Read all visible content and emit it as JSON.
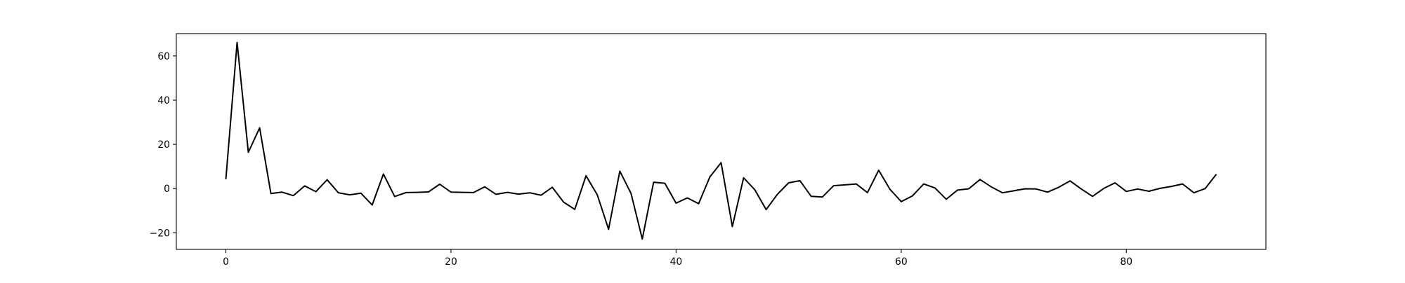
{
  "chart_data": {
    "type": "line",
    "title": "",
    "xlabel": "",
    "ylabel": "",
    "xlim": [
      -4.4,
      92.4
    ],
    "ylim": [
      -27.5,
      70.1
    ],
    "xticks": [
      0,
      20,
      40,
      60,
      80
    ],
    "yticks": [
      -20,
      0,
      20,
      40,
      60
    ],
    "grid": false,
    "legend": "none",
    "series": [
      {
        "color": "#000000",
        "x": [
          0,
          1,
          2,
          3,
          4,
          5,
          6,
          7,
          8,
          9,
          10,
          11,
          12,
          13,
          14,
          15,
          16,
          17,
          18,
          19,
          20,
          21,
          22,
          23,
          24,
          25,
          26,
          27,
          28,
          29,
          30,
          31,
          32,
          33,
          34,
          35,
          36,
          37,
          38,
          39,
          40,
          41,
          42,
          43,
          44,
          45,
          46,
          47,
          48,
          49,
          50,
          51,
          52,
          53,
          54,
          55,
          56,
          57,
          58,
          59,
          60,
          61,
          62,
          63,
          64,
          65,
          66,
          67,
          68,
          69,
          70,
          71,
          72,
          73,
          74,
          75,
          76,
          77,
          78,
          79,
          80,
          81,
          82,
          83,
          84,
          85,
          86,
          87,
          88
        ],
        "y": [
          4.2,
          66.1,
          16.4,
          27.5,
          -2.2,
          -1.6,
          -3.2,
          1.2,
          -1.4,
          4.0,
          -1.9,
          -2.8,
          -2.1,
          -7.4,
          6.6,
          -3.6,
          -1.8,
          -1.7,
          -1.5,
          2.0,
          -1.6,
          -1.7,
          -1.8,
          0.8,
          -2.6,
          -1.7,
          -2.5,
          -1.9,
          -3.0,
          0.6,
          -6.1,
          -9.4,
          5.8,
          -2.8,
          -18.4,
          7.9,
          -2.2,
          -22.8,
          2.9,
          2.4,
          -6.6,
          -4.2,
          -6.8,
          5.3,
          11.7,
          -17.2,
          4.9,
          -0.6,
          -9.5,
          -2.6,
          2.6,
          3.6,
          -3.5,
          -3.8,
          1.3,
          1.7,
          2.1,
          -1.8,
          8.3,
          -0.3,
          -5.9,
          -3.3,
          2.1,
          0.3,
          -4.8,
          -0.7,
          -0.1,
          4.1,
          0.8,
          -1.9,
          -1.0,
          -0.1,
          -0.2,
          -1.6,
          0.6,
          3.5,
          -0.2,
          -3.5,
          0.1,
          2.6,
          -1.3,
          -0.2,
          -1.2,
          0.1,
          1.0,
          2.1,
          -1.9,
          0.0,
          6.5
        ]
      }
    ]
  }
}
